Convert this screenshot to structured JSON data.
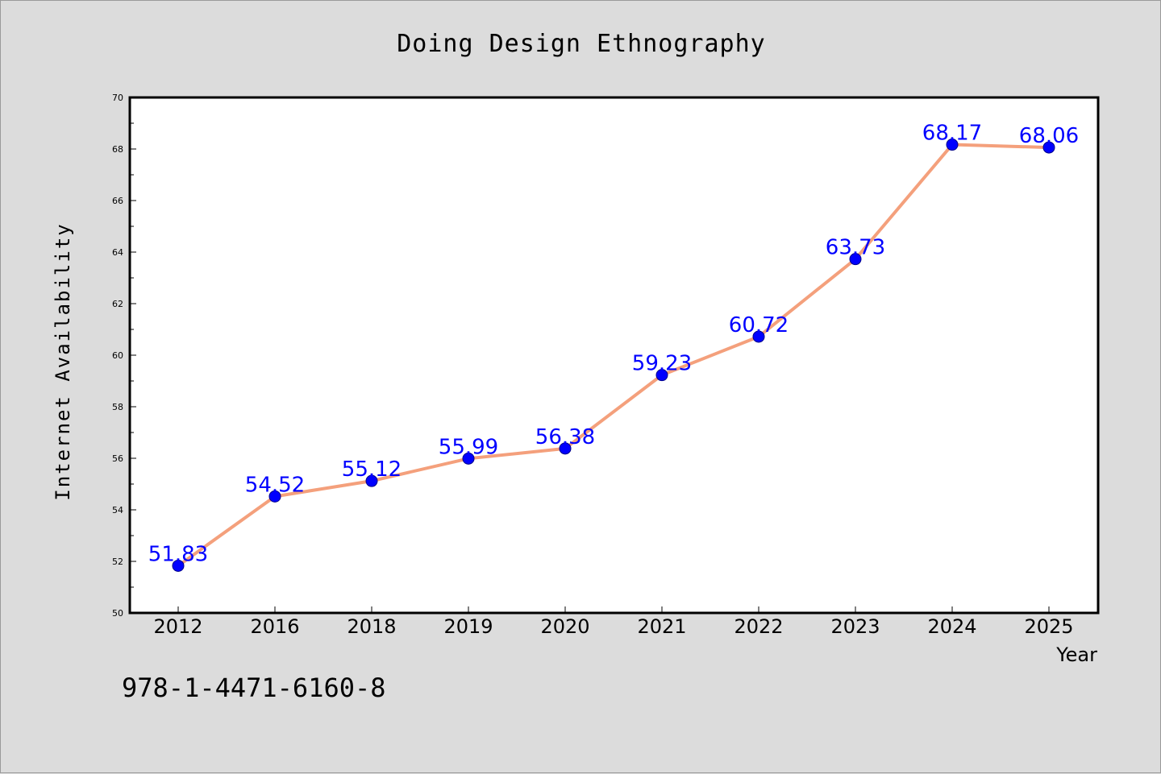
{
  "chart_data": {
    "type": "line",
    "title": "Doing Design Ethnography",
    "xlabel": "Year",
    "ylabel": "Internet Availability",
    "categories": [
      "2012",
      "2016",
      "2018",
      "2019",
      "2020",
      "2021",
      "2022",
      "2023",
      "2024",
      "2025"
    ],
    "series": [
      {
        "values": [
          51.83,
          54.52,
          55.12,
          55.99,
          56.38,
          59.23,
          60.72,
          63.73,
          68.17,
          68.06
        ],
        "data_labels": [
          "51.83",
          "54.52",
          "55.12",
          "55.99",
          "56.38",
          "59.23",
          "60.72",
          "63.73",
          "68.17",
          "68.06"
        ]
      }
    ],
    "ylim": [
      50,
      70
    ],
    "yticks": [
      "50",
      "52",
      "54",
      "56",
      "58",
      "60",
      "62",
      "64",
      "66",
      "68",
      "70"
    ],
    "grid": false,
    "legend": "none",
    "colors": {
      "line": "#f4a07c",
      "marker": "#0000ff",
      "marker_edge": "#00008b",
      "data_label": "#0000ff",
      "plot_background": "#ffffff",
      "figure_background": "#dcdcdc"
    }
  },
  "footnote": "978-1-4471-6160-8"
}
